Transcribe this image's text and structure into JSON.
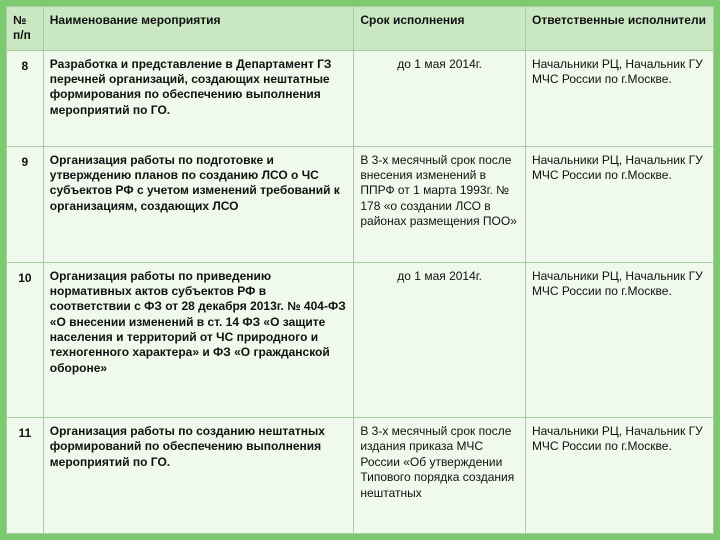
{
  "outer_bg": "#7dc96f",
  "header_bg": "#c9e8c1",
  "row_bg": "#eff9ec",
  "columns": {
    "num": "№ п/п",
    "name": "Наименование мероприятия",
    "deadline": "Срок исполнения",
    "resp": "Ответственные исполнители"
  },
  "rows": [
    {
      "num": "8",
      "name": "Разработка и представление в Департамент ГЗ перечней организаций, создающих нештатные формирования по обеспечению выполнения мероприятий по ГО.",
      "deadline": "до 1 мая 2014г.",
      "deadline_align": "center",
      "resp": "Начальники РЦ, Начальник ГУ МЧС России по г.Москве."
    },
    {
      "num": "9",
      "name": "Организация работы по подготовке и утверждению планов по созданию ЛСО о ЧС субъектов РФ с учетом изменений требований к организациям, создающих ЛСО",
      "deadline": "В 3-х месячный срок после внесения изменений в ППРФ от 1 марта 1993г. № 178 «о создании ЛСО в районах размещения ПОО»",
      "deadline_align": "left",
      "resp": "Начальники РЦ, Начальник ГУ МЧС России по г.Москве."
    },
    {
      "num": "10",
      "name": "Организация работы по приведению нормативных актов субъектов РФ в соответствии с ФЗ от 28 декабря 2013г. № 404-ФЗ «О внесении изменений в ст. 14 ФЗ «О защите населения и территорий от ЧС природного и техногенного характера» и ФЗ «О гражданской обороне»",
      "deadline": "до 1 мая 2014г.",
      "deadline_align": "center",
      "resp": "Начальники РЦ, Начальник ГУ МЧС России по г.Москве."
    },
    {
      "num": "11",
      "name": "Организация работы по созданию нештатных формирований по обеспечению выполнения мероприятий по ГО.",
      "deadline": "В 3-х месячный срок после издания приказа МЧС России «Об утверждении Типового порядка создания нештатных",
      "deadline_align": "left",
      "resp": "Начальники РЦ, Начальник ГУ МЧС России по г.Москве."
    }
  ]
}
